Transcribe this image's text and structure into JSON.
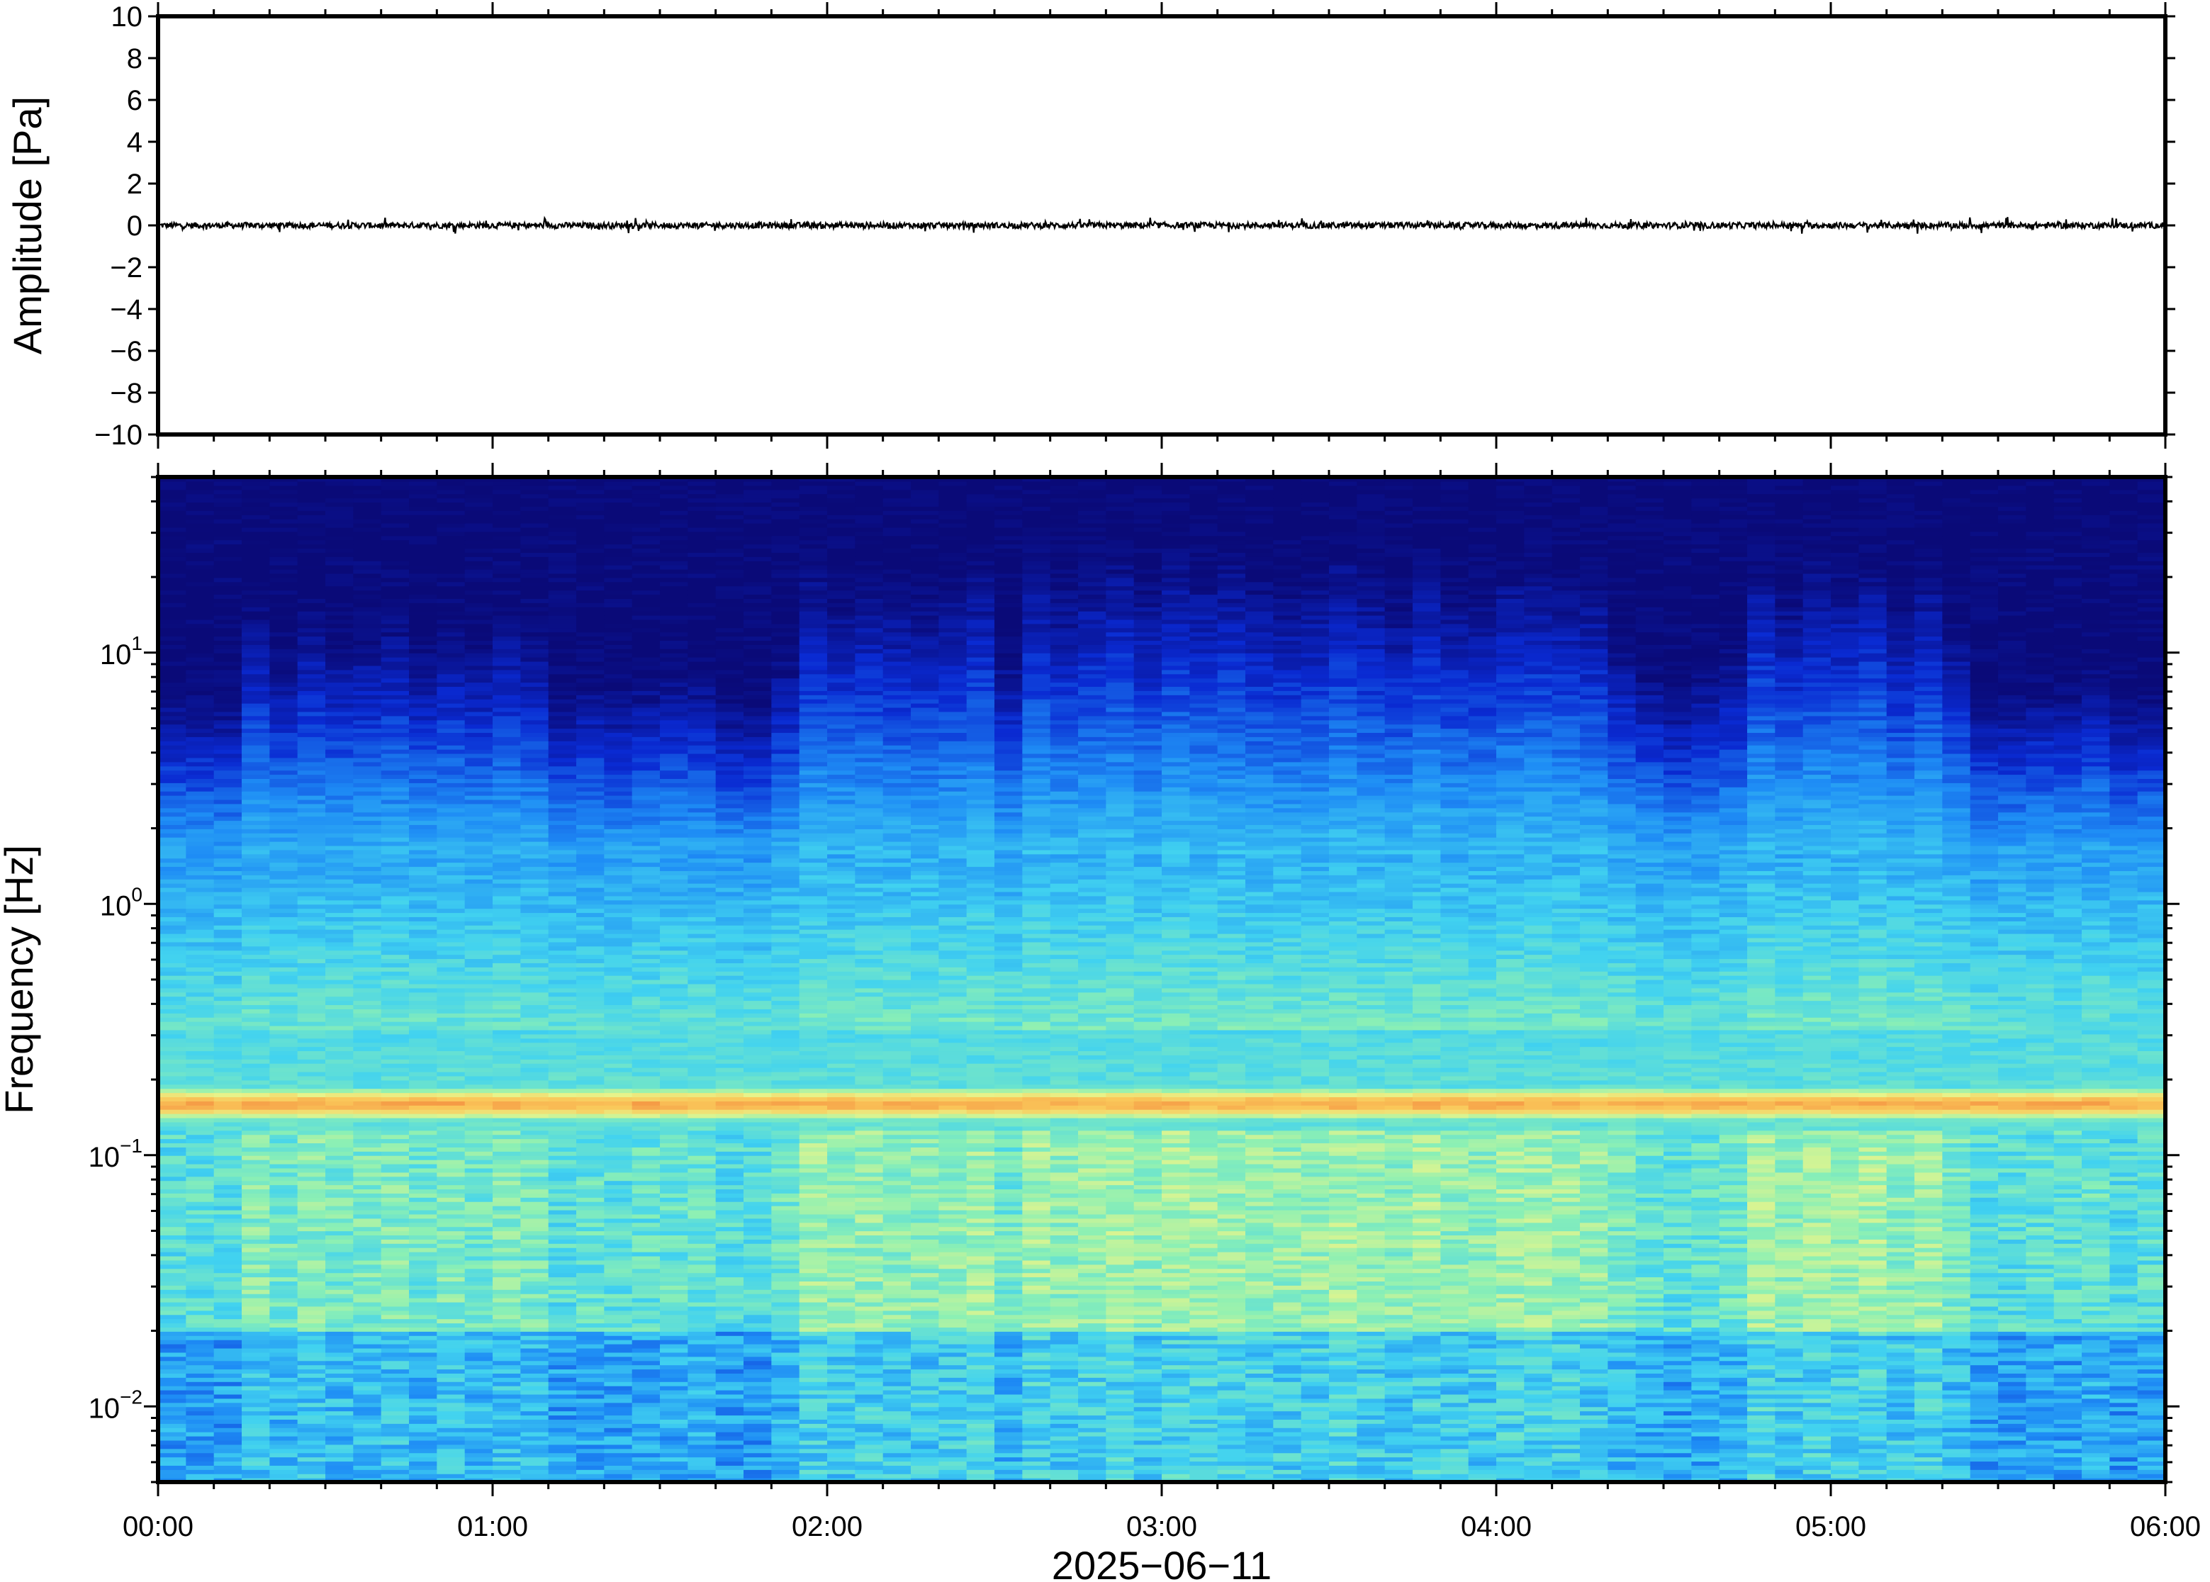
{
  "chart_data": [
    {
      "type": "line",
      "panel": "waveform",
      "ylabel": "Amplitude [Pa]",
      "ylim": [
        -10,
        10
      ],
      "yticks": [
        10,
        8,
        6,
        4,
        2,
        0,
        -2,
        -4,
        -6,
        -8,
        -10
      ],
      "ytick_labels": [
        "10",
        "8",
        "6",
        "4",
        "2",
        "0",
        "−2",
        "−4",
        "−6",
        "−8",
        "−10"
      ],
      "xlim_hours": [
        0,
        6
      ],
      "series_mean": 0,
      "series_peak_abs": 0.4,
      "line_color": "#000000"
    },
    {
      "type": "heatmap",
      "panel": "spectrogram",
      "ylabel": "Frequency [Hz]",
      "yscale": "log",
      "ylim": [
        0.005,
        50
      ],
      "yticks": [
        0.01,
        0.1,
        1,
        10
      ],
      "ytick_labels": [
        {
          "base": "10",
          "exp": "−2"
        },
        {
          "base": "10",
          "exp": "−1"
        },
        {
          "base": "10",
          "exp": "0"
        },
        {
          "base": "10",
          "exp": "1"
        }
      ],
      "xlabel": "2025−06−11",
      "xticks_hours": [
        0,
        1,
        2,
        3,
        4,
        5,
        6
      ],
      "xtick_labels": [
        "00:00",
        "01:00",
        "02:00",
        "03:00",
        "04:00",
        "05:00",
        "06:00"
      ],
      "colormap": [
        "#0a0a78",
        "#0a2ad2",
        "#1e8cf5",
        "#41d2f0",
        "#8cf0b4",
        "#e6f58c",
        "#fac85a",
        "#f06e32"
      ],
      "dominant_band_hz": 0.16,
      "active_periods_hours": [
        [
          1.95,
          2.5
        ],
        [
          2.6,
          4.3
        ],
        [
          4.75,
          5.3
        ]
      ]
    }
  ]
}
